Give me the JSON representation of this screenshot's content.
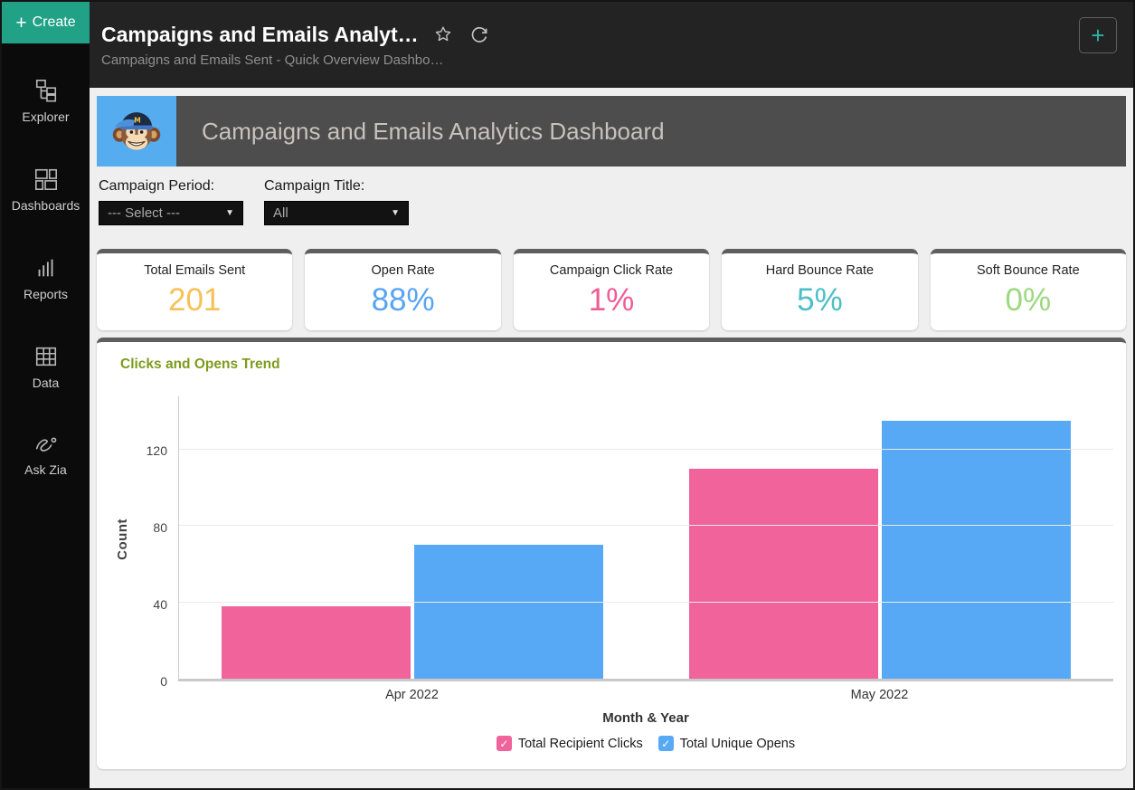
{
  "sidebar": {
    "create_label": "Create",
    "create_color": "#21a287",
    "items": [
      {
        "label": "Explorer"
      },
      {
        "label": "Dashboards"
      },
      {
        "label": "Reports"
      },
      {
        "label": "Data"
      },
      {
        "label": "Ask Zia"
      }
    ]
  },
  "header": {
    "title": "Campaigns and Emails Analyt…",
    "subtitle": "Campaigns and Emails Sent - Quick Overview Dashbo…",
    "add_button_label": "+"
  },
  "banner": {
    "title": "Campaigns and Emails Analytics Dashboard",
    "logo": "mailchimp-monkey",
    "logo_bg": "#55acee",
    "bg": "#4d4d4d"
  },
  "filters": [
    {
      "label": "Campaign Period:",
      "value": "--- Select ---"
    },
    {
      "label": "Campaign Title:",
      "value": "All"
    }
  ],
  "kpis": [
    {
      "label": "Total Emails Sent",
      "value": "201",
      "color": "#f6c157"
    },
    {
      "label": "Open Rate",
      "value": "88%",
      "color": "#57a4f2"
    },
    {
      "label": "Campaign Click Rate",
      "value": "1%",
      "color": "#f05c93"
    },
    {
      "label": "Hard Bounce Rate",
      "value": "5%",
      "color": "#4cbfc6"
    },
    {
      "label": "Soft Bounce Rate",
      "value": "0%",
      "color": "#9bd97e"
    }
  ],
  "chart_data": {
    "type": "bar",
    "title": "Clicks and Opens Trend",
    "title_color": "#7d9b1c",
    "categories": [
      "Apr 2022",
      "May 2022"
    ],
    "series": [
      {
        "name": "Total Recipient Clicks",
        "color": "#f0639b",
        "values": [
          38,
          110
        ]
      },
      {
        "name": "Total Unique Opens",
        "color": "#58a9f5",
        "values": [
          70,
          135
        ]
      }
    ],
    "xlabel": "Month & Year",
    "ylabel": "Count",
    "yticks": [
      0,
      40,
      80,
      120
    ],
    "ylim": [
      0,
      148
    ],
    "grid": true,
    "legend_position": "bottom"
  }
}
